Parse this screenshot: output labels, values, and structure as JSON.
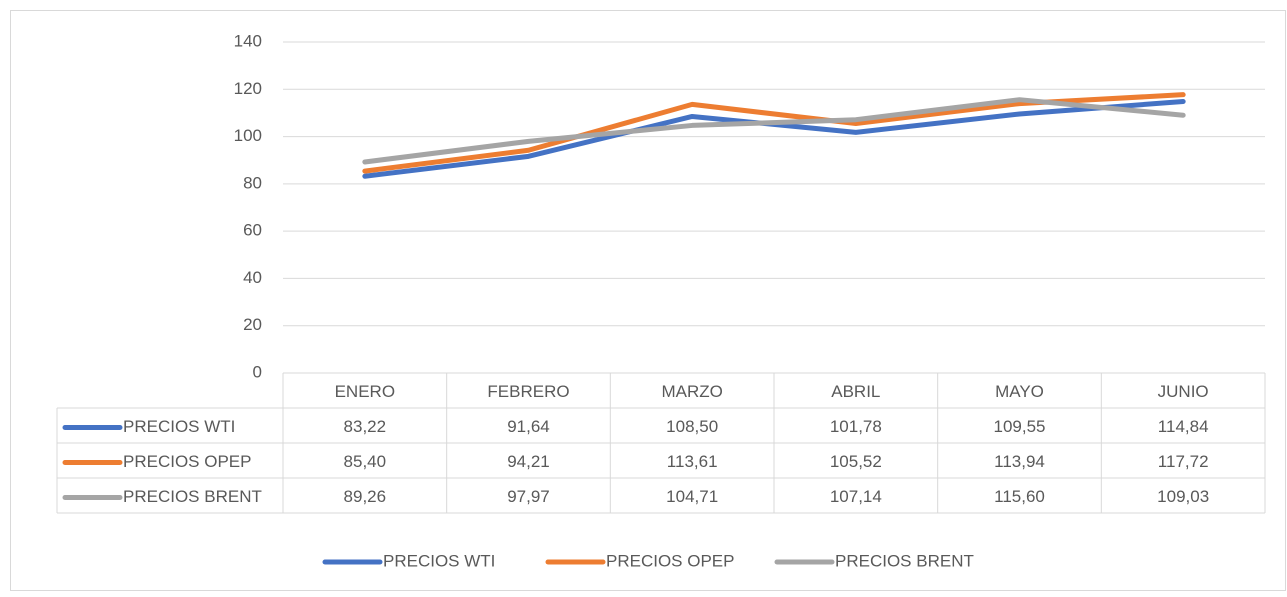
{
  "chart_data": {
    "type": "line",
    "categories": [
      "ENERO",
      "FEBRERO",
      "MARZO",
      "ABRIL",
      "MAYO",
      "JUNIO"
    ],
    "series": [
      {
        "name": "PRECIOS WTI",
        "color": "#4472c4",
        "values": [
          83.22,
          91.64,
          108.5,
          101.78,
          109.55,
          114.84
        ],
        "value_labels": [
          "83,22",
          "91,64",
          "108,50",
          "101,78",
          "109,55",
          "114,84"
        ]
      },
      {
        "name": "PRECIOS OPEP",
        "color": "#ed7d31",
        "values": [
          85.4,
          94.21,
          113.61,
          105.52,
          113.94,
          117.72
        ],
        "value_labels": [
          "85,40",
          "94,21",
          "113,61",
          "105,52",
          "113,94",
          "117,72"
        ]
      },
      {
        "name": "PRECIOS BRENT",
        "color": "#a5a5a5",
        "values": [
          89.26,
          97.97,
          104.71,
          107.14,
          115.6,
          109.03
        ],
        "value_labels": [
          "89,26",
          "97,97",
          "104,71",
          "107,14",
          "115,60",
          "109,03"
        ]
      }
    ],
    "ylim": [
      0,
      140
    ],
    "yticks": [
      0,
      20,
      40,
      60,
      80,
      100,
      120,
      140
    ],
    "grid": true,
    "legend": "bottom"
  }
}
